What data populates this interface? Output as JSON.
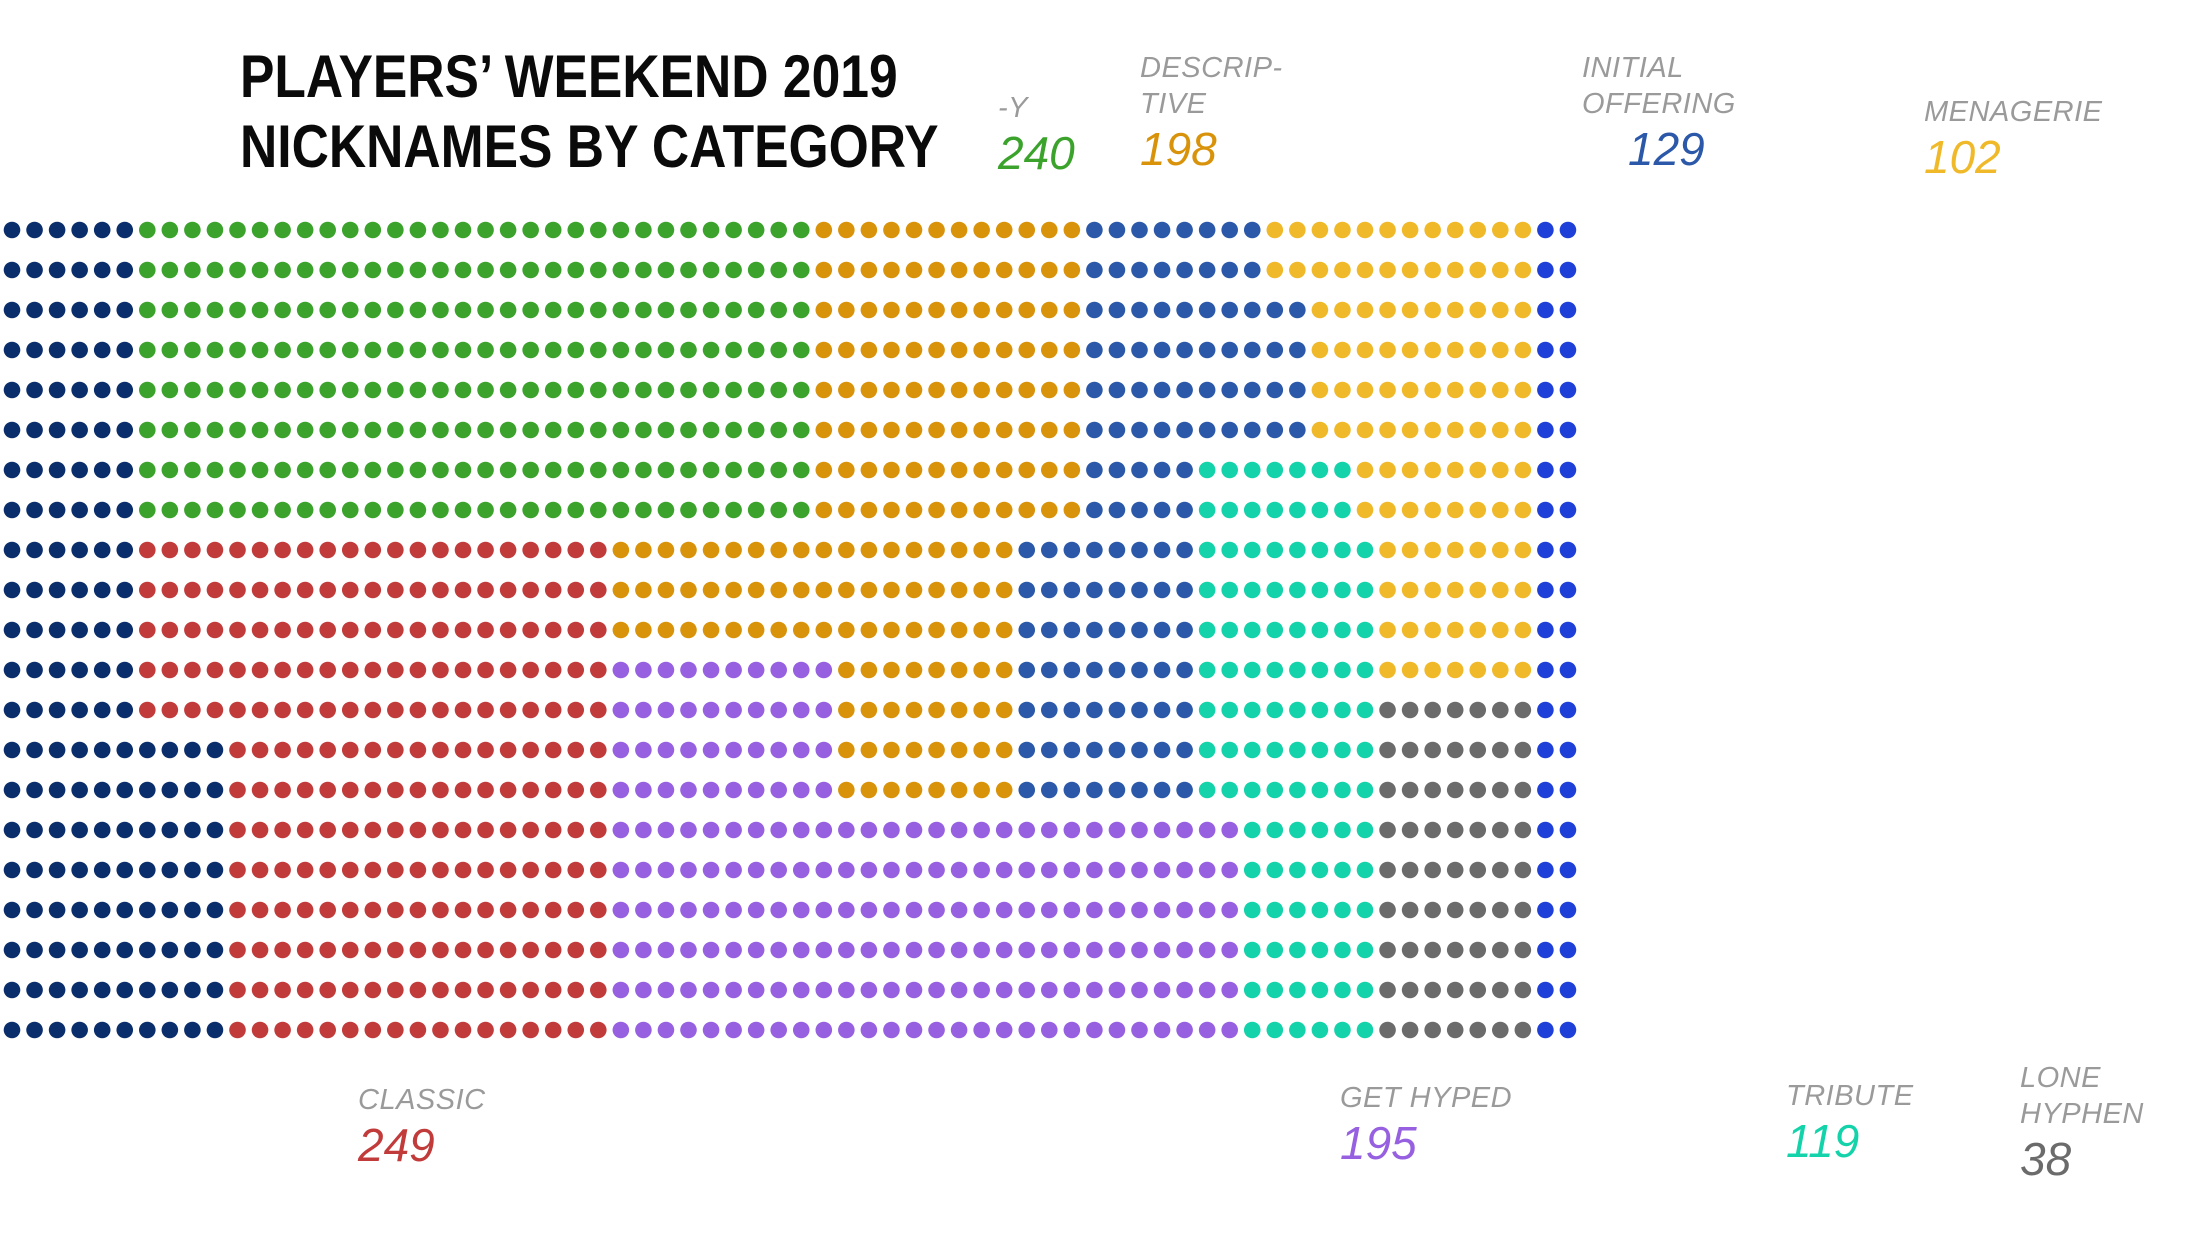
{
  "title": {
    "line1": "PLAYERS’ WEEKEND 2019",
    "line2": "NICKNAMES BY CATEGORY"
  },
  "chart_data": {
    "type": "waffle",
    "title": "PLAYERS’ WEEKEND 2019 NICKNAMES BY CATEGORY",
    "unit": "one dot = one nickname",
    "categories": [
      {
        "key": "cut_left",
        "name": "",
        "count": null,
        "color": "#0a2d6b"
      },
      {
        "key": "y",
        "name": "-Y",
        "count": 240,
        "color": "#3ba32c"
      },
      {
        "key": "classic",
        "name": "CLASSIC",
        "count": 249,
        "color": "#c23b3b"
      },
      {
        "key": "descriptive",
        "name": "DESCRIP-\nTIVE",
        "count": 198,
        "color": "#d9930b"
      },
      {
        "key": "get_hyped",
        "name": "GET HYPED",
        "count": 195,
        "color": "#9660e0"
      },
      {
        "key": "initial_offering",
        "name": "INITIAL\nOFFERING",
        "count": 129,
        "color": "#2b58a8"
      },
      {
        "key": "tribute",
        "name": "TRIBUTE",
        "count": 119,
        "color": "#14d3aa"
      },
      {
        "key": "menagerie",
        "name": "MENAGERIE",
        "count": 102,
        "color": "#f0b92a"
      },
      {
        "key": "lone_hyphen",
        "name": "LONE\nHYPHEN",
        "count": 38,
        "color": "#6b6b6b"
      },
      {
        "key": "cut_right",
        "name": "",
        "count": null,
        "color": "#1f3fd9"
      }
    ]
  },
  "labels": {
    "y": {
      "name": "-Y",
      "count": "240",
      "color": "#3ba32c"
    },
    "descriptive": {
      "name": "DESCRIP-\nTIVE",
      "count": "198",
      "color": "#d9930b"
    },
    "initial_offering": {
      "name": "INITIAL\nOFFERING",
      "count": "129",
      "color": "#2b58a8"
    },
    "menagerie": {
      "name": "MENAGERIE",
      "count": "102",
      "color": "#f0b92a"
    },
    "classic": {
      "name": "CLASSIC",
      "count": "249",
      "color": "#c23b3b"
    },
    "get_hyped": {
      "name": "GET HYPED",
      "count": "195",
      "color": "#9660e0"
    },
    "tribute": {
      "name": "TRIBUTE",
      "count": "119",
      "color": "#14d3aa"
    },
    "lone_hyphen": {
      "name": "LONE\nHYPHEN",
      "count": "38",
      "color": "#6b6b6b"
    }
  }
}
